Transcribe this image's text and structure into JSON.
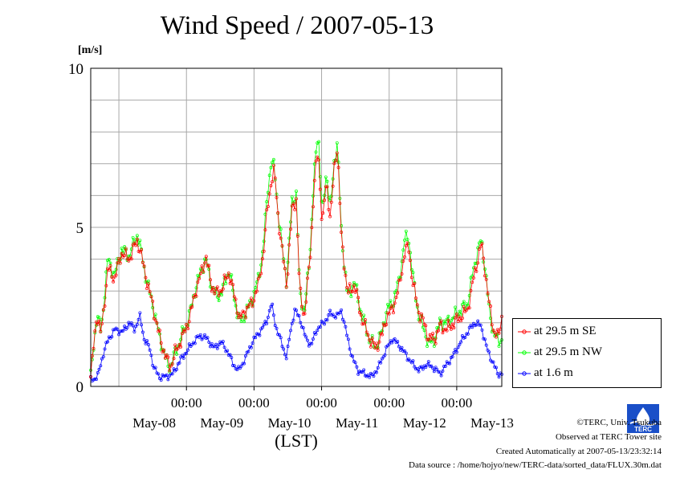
{
  "chart_data": {
    "type": "line",
    "title": "Wind Speed / 2007-05-13",
    "ylabel": "[m/s]",
    "xlabel": "(LST)",
    "ylim": [
      0,
      10
    ],
    "xlim": [
      "2007-05-07 14:00",
      "2007-05-13 16:00"
    ],
    "y_ticks": [
      "0",
      "5",
      "10"
    ],
    "x_time_ticks": [
      "00:00",
      "00:00",
      "00:00",
      "00:00",
      "00:00"
    ],
    "x_date_labels": [
      "May-08",
      "May-09",
      "May-10",
      "May-11",
      "May-12",
      "May-13"
    ],
    "grid": true,
    "legend_position": "right",
    "series": [
      {
        "name": "at 29.5 m SE",
        "color": "#ff0000",
        "keypoints": [
          [
            0,
            0.3
          ],
          [
            0.9,
            2.3
          ],
          [
            1.5,
            1.6
          ],
          [
            2.5,
            3.7
          ],
          [
            3.5,
            3.4
          ],
          [
            4.5,
            4.2
          ],
          [
            5.6,
            4.0
          ],
          [
            6.8,
            4.6
          ],
          [
            7.4,
            4.1
          ],
          [
            8.0,
            3.5
          ],
          [
            9.0,
            2.6
          ],
          [
            10.0,
            1.6
          ],
          [
            11.0,
            0.9
          ],
          [
            11.6,
            0.6
          ],
          [
            12.4,
            1.1
          ],
          [
            13.5,
            1.6
          ],
          [
            14.5,
            2.2
          ],
          [
            15.3,
            3.0
          ],
          [
            16.2,
            3.6
          ],
          [
            16.8,
            4.1
          ],
          [
            17.6,
            3.2
          ],
          [
            18.4,
            2.9
          ],
          [
            19.2,
            3.1
          ],
          [
            20.2,
            3.6
          ],
          [
            21.0,
            2.8
          ],
          [
            21.8,
            2.1
          ],
          [
            22.6,
            2.4
          ],
          [
            23.5,
            2.6
          ],
          [
            24.5,
            3.2
          ],
          [
            25.2,
            4.2
          ],
          [
            25.8,
            5.6
          ],
          [
            26.3,
            6.4
          ],
          [
            26.8,
            6.8
          ],
          [
            27.3,
            5.5
          ],
          [
            27.8,
            4.5
          ],
          [
            28.6,
            3.2
          ],
          [
            29.4,
            5.6
          ],
          [
            30.0,
            5.9
          ],
          [
            30.5,
            3.0
          ],
          [
            31.2,
            2.2
          ],
          [
            32.0,
            4.0
          ],
          [
            32.6,
            6.3
          ],
          [
            33.2,
            7.5
          ],
          [
            33.8,
            5.0
          ],
          [
            34.4,
            6.5
          ],
          [
            35.0,
            5.2
          ],
          [
            35.5,
            6.8
          ],
          [
            36.0,
            7.6
          ],
          [
            36.6,
            4.6
          ],
          [
            37.0,
            3.9
          ],
          [
            37.5,
            2.9
          ],
          [
            38.5,
            3.2
          ],
          [
            39.5,
            2.2
          ],
          [
            40.5,
            1.6
          ],
          [
            41.5,
            1.2
          ],
          [
            42.5,
            1.6
          ],
          [
            43.2,
            2.2
          ],
          [
            44.0,
            2.4
          ],
          [
            45.0,
            3.1
          ],
          [
            45.8,
            4.2
          ],
          [
            46.4,
            4.4
          ],
          [
            47.0,
            3.3
          ],
          [
            47.8,
            2.4
          ],
          [
            48.6,
            2.0
          ],
          [
            49.4,
            1.5
          ],
          [
            50.2,
            1.5
          ],
          [
            51.0,
            1.9
          ],
          [
            52.0,
            1.8
          ],
          [
            53.0,
            2.0
          ],
          [
            54.0,
            2.2
          ],
          [
            55.0,
            2.4
          ],
          [
            55.8,
            3.3
          ],
          [
            56.4,
            3.9
          ],
          [
            57.0,
            4.5
          ],
          [
            57.6,
            3.6
          ],
          [
            58.2,
            2.5
          ],
          [
            58.8,
            1.8
          ],
          [
            59.5,
            1.5
          ],
          [
            60.0,
            2.2
          ]
        ]
      },
      {
        "name": "at 29.5 m NW",
        "color": "#00ff00",
        "keypoints": [
          [
            0,
            0.3
          ],
          [
            0.9,
            2.3
          ],
          [
            1.5,
            1.7
          ],
          [
            2.5,
            4.0
          ],
          [
            3.5,
            3.5
          ],
          [
            4.5,
            4.3
          ],
          [
            5.6,
            4.1
          ],
          [
            6.8,
            4.8
          ],
          [
            7.4,
            4.2
          ],
          [
            8.0,
            3.5
          ],
          [
            9.0,
            2.6
          ],
          [
            10.0,
            1.6
          ],
          [
            11.0,
            0.8
          ],
          [
            11.6,
            0.6
          ],
          [
            12.4,
            1.1
          ],
          [
            13.5,
            1.7
          ],
          [
            14.5,
            2.3
          ],
          [
            15.3,
            3.1
          ],
          [
            16.2,
            3.7
          ],
          [
            16.8,
            4.0
          ],
          [
            17.6,
            3.2
          ],
          [
            18.4,
            2.8
          ],
          [
            19.2,
            3.0
          ],
          [
            20.2,
            3.7
          ],
          [
            21.0,
            2.7
          ],
          [
            21.8,
            2.0
          ],
          [
            22.6,
            2.3
          ],
          [
            23.5,
            2.7
          ],
          [
            24.5,
            3.4
          ],
          [
            25.2,
            4.4
          ],
          [
            25.8,
            6.1
          ],
          [
            26.3,
            7.0
          ],
          [
            26.8,
            6.9
          ],
          [
            27.3,
            5.6
          ],
          [
            27.8,
            4.6
          ],
          [
            28.6,
            3.3
          ],
          [
            29.4,
            5.9
          ],
          [
            30.0,
            6.0
          ],
          [
            30.5,
            3.0
          ],
          [
            31.2,
            2.3
          ],
          [
            32.0,
            4.2
          ],
          [
            32.6,
            6.6
          ],
          [
            33.2,
            8.1
          ],
          [
            33.8,
            5.3
          ],
          [
            34.4,
            6.8
          ],
          [
            35.0,
            5.5
          ],
          [
            35.5,
            7.0
          ],
          [
            36.0,
            7.7
          ],
          [
            36.6,
            4.8
          ],
          [
            37.0,
            3.9
          ],
          [
            37.5,
            2.8
          ],
          [
            38.5,
            3.3
          ],
          [
            39.5,
            2.3
          ],
          [
            40.5,
            1.6
          ],
          [
            41.5,
            1.2
          ],
          [
            42.5,
            1.7
          ],
          [
            43.2,
            2.4
          ],
          [
            44.0,
            2.6
          ],
          [
            45.0,
            3.3
          ],
          [
            45.8,
            4.6
          ],
          [
            46.4,
            4.7
          ],
          [
            47.0,
            3.5
          ],
          [
            47.8,
            2.3
          ],
          [
            48.6,
            1.8
          ],
          [
            49.4,
            1.3
          ],
          [
            50.2,
            1.5
          ],
          [
            51.0,
            2.0
          ],
          [
            52.0,
            2.0
          ],
          [
            53.0,
            2.2
          ],
          [
            54.0,
            2.4
          ],
          [
            55.0,
            2.6
          ],
          [
            55.8,
            3.6
          ],
          [
            56.4,
            4.2
          ],
          [
            57.0,
            4.6
          ],
          [
            57.6,
            3.7
          ],
          [
            58.2,
            2.3
          ],
          [
            58.8,
            1.7
          ],
          [
            59.5,
            1.4
          ],
          [
            60.0,
            1.5
          ]
        ]
      },
      {
        "name": "at 1.6 m",
        "color": "#0000ff",
        "keypoints": [
          [
            0,
            0.2
          ],
          [
            1.0,
            0.3
          ],
          [
            1.8,
            1.0
          ],
          [
            2.6,
            1.5
          ],
          [
            3.6,
            1.8
          ],
          [
            4.6,
            1.7
          ],
          [
            5.6,
            2.0
          ],
          [
            6.4,
            1.8
          ],
          [
            7.2,
            2.2
          ],
          [
            7.8,
            1.5
          ],
          [
            8.6,
            1.2
          ],
          [
            9.2,
            0.6
          ],
          [
            10.0,
            0.3
          ],
          [
            11.0,
            0.3
          ],
          [
            12.0,
            0.4
          ],
          [
            13.0,
            0.8
          ],
          [
            14.0,
            1.1
          ],
          [
            15.0,
            1.4
          ],
          [
            16.0,
            1.6
          ],
          [
            17.0,
            1.5
          ],
          [
            18.0,
            1.2
          ],
          [
            19.0,
            1.4
          ],
          [
            20.0,
            1.1
          ],
          [
            20.8,
            0.7
          ],
          [
            21.6,
            0.5
          ],
          [
            22.6,
            0.9
          ],
          [
            23.6,
            1.4
          ],
          [
            24.6,
            1.7
          ],
          [
            25.6,
            2.0
          ],
          [
            26.4,
            2.6
          ],
          [
            27.0,
            1.9
          ],
          [
            27.8,
            1.4
          ],
          [
            28.6,
            0.9
          ],
          [
            29.2,
            1.8
          ],
          [
            29.8,
            2.4
          ],
          [
            30.6,
            2.1
          ],
          [
            31.4,
            1.5
          ],
          [
            32.2,
            1.3
          ],
          [
            33.0,
            1.8
          ],
          [
            34.0,
            2.0
          ],
          [
            35.0,
            2.3
          ],
          [
            36.0,
            2.2
          ],
          [
            36.6,
            2.4
          ],
          [
            37.4,
            1.6
          ],
          [
            38.2,
            0.9
          ],
          [
            39.0,
            0.5
          ],
          [
            40.0,
            0.4
          ],
          [
            41.0,
            0.3
          ],
          [
            42.0,
            0.6
          ],
          [
            43.0,
            1.1
          ],
          [
            44.0,
            1.5
          ],
          [
            45.0,
            1.3
          ],
          [
            46.0,
            1.0
          ],
          [
            47.0,
            0.7
          ],
          [
            48.0,
            0.5
          ],
          [
            49.0,
            0.7
          ],
          [
            50.0,
            0.6
          ],
          [
            51.0,
            0.4
          ],
          [
            52.0,
            0.7
          ],
          [
            53.0,
            1.0
          ],
          [
            54.0,
            1.4
          ],
          [
            55.0,
            1.7
          ],
          [
            56.0,
            2.0
          ],
          [
            57.0,
            1.9
          ],
          [
            57.8,
            1.2
          ],
          [
            58.6,
            0.8
          ],
          [
            59.4,
            0.4
          ],
          [
            60.0,
            0.4
          ]
        ]
      }
    ]
  },
  "footer": {
    "copyright": "©TERC, Univ. Tsukuba",
    "observed": "Observed at TERC Tower site",
    "created": "Created Automatically at 2007-05-13/23:32:14",
    "source": "Data source : /home/hojyo/new/TERC-data/sorted_data/FLUX.30m.dat"
  },
  "logo_text": "TERC"
}
